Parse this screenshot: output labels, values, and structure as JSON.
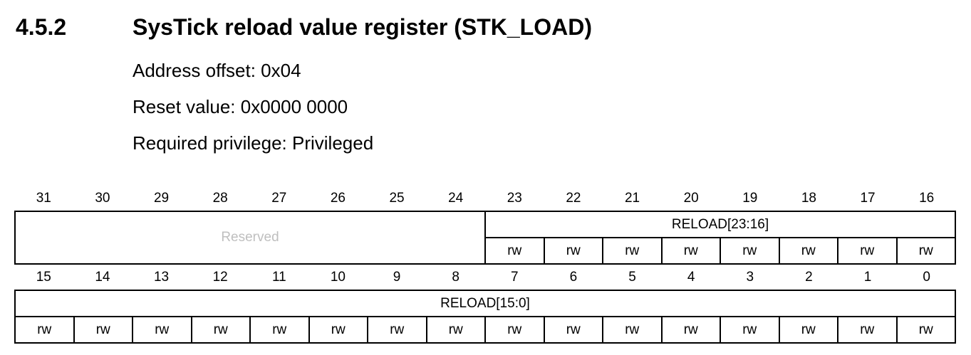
{
  "section": {
    "number": "4.5.2",
    "title": "SysTick reload value register (STK_LOAD)"
  },
  "meta": {
    "address_offset": "Address offset: 0x04",
    "reset_value": "Reset value: 0x0000 0000",
    "privilege": "Required privilege: Privileged"
  },
  "upper": {
    "bits": [
      "31",
      "30",
      "29",
      "28",
      "27",
      "26",
      "25",
      "24",
      "23",
      "22",
      "21",
      "20",
      "19",
      "18",
      "17",
      "16"
    ],
    "reserved_label": "Reserved",
    "field_label": "RELOAD[23:16]",
    "access": [
      "rw",
      "rw",
      "rw",
      "rw",
      "rw",
      "rw",
      "rw",
      "rw"
    ]
  },
  "lower": {
    "bits": [
      "15",
      "14",
      "13",
      "12",
      "11",
      "10",
      "9",
      "8",
      "7",
      "6",
      "5",
      "4",
      "3",
      "2",
      "1",
      "0"
    ],
    "field_label": "RELOAD[15:0]",
    "access": [
      "rw",
      "rw",
      "rw",
      "rw",
      "rw",
      "rw",
      "rw",
      "rw",
      "rw",
      "rw",
      "rw",
      "rw",
      "rw",
      "rw",
      "rw",
      "rw"
    ]
  }
}
